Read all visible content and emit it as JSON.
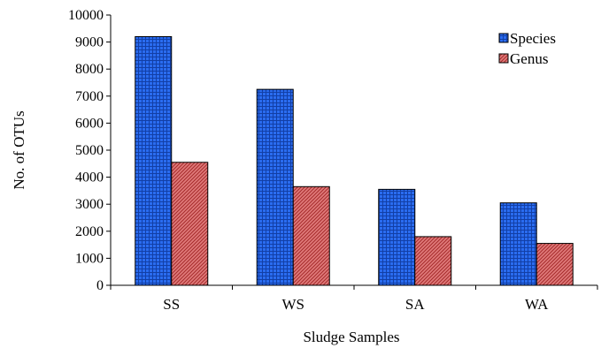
{
  "chart_data": {
    "type": "bar",
    "title": "",
    "xlabel": "Sludge Samples",
    "ylabel": "No. of OTUs",
    "categories": [
      "SS",
      "WS",
      "SA",
      "WA"
    ],
    "series": [
      {
        "name": "Species",
        "values": [
          9200,
          7250,
          3550,
          3050
        ],
        "color": "#1f5fe0",
        "pattern": "grid"
      },
      {
        "name": "Genus",
        "values": [
          4550,
          3650,
          1800,
          1550
        ],
        "color": "#d45a5a",
        "pattern": "diagonal"
      }
    ],
    "ylim": [
      0,
      10000
    ],
    "yticks": [
      0,
      1000,
      2000,
      3000,
      4000,
      5000,
      6000,
      7000,
      8000,
      9000,
      10000
    ],
    "grid": false,
    "legend_position": "top-right"
  }
}
